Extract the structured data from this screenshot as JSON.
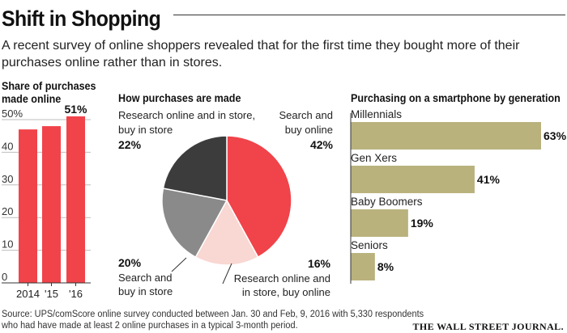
{
  "header": {
    "title": "Shift in Shopping",
    "subtitle": "A recent survey of online shoppers revealed that for the first time they bought more of their purchases online rather than in stores."
  },
  "colors": {
    "red": "#f1434a",
    "dark_gray": "#3c3c3c",
    "mid_gray": "#8a8a8a",
    "pink": "#f9d7d2",
    "khaki": "#b9b27d"
  },
  "chart_data": [
    {
      "type": "bar",
      "title": "Share of purchases made online",
      "categories": [
        "2014",
        "'15",
        "'16"
      ],
      "values": [
        47,
        48,
        51
      ],
      "ylim": [
        0,
        50
      ],
      "yticks": [
        "0",
        "10",
        "20",
        "30",
        "40",
        "50%"
      ],
      "data_labels": [
        "",
        "",
        "51%"
      ]
    },
    {
      "type": "pie",
      "title": "How purchases are made",
      "slices": [
        {
          "label": "Search and buy online",
          "value": 42,
          "value_label": "42%",
          "color": "#f1434a"
        },
        {
          "label": "Research online and in store, buy online",
          "value": 16,
          "value_label": "16%",
          "color": "#f9d7d2"
        },
        {
          "label": "Search and buy in store",
          "value": 20,
          "value_label": "20%",
          "color": "#8a8a8a"
        },
        {
          "label": "Research online and in store, buy in store",
          "value": 22,
          "value_label": "22%",
          "color": "#3c3c3c"
        }
      ]
    },
    {
      "type": "bar",
      "orientation": "horizontal",
      "title": "Purchasing on a smartphone by generation",
      "categories": [
        "Millennials",
        "Gen Xers",
        "Baby Boomers",
        "Seniors"
      ],
      "values": [
        63,
        41,
        19,
        8
      ],
      "value_labels": [
        "63%",
        "41%",
        "19%",
        "8%"
      ]
    }
  ],
  "footer": {
    "source": "Source: UPS/comScore online survey conducted between Jan. 30 and Feb, 9, 2016 with 5,330 respondents who had have made at least 2 online purchases in a typical 3-month period.",
    "brand": "THE WALL STREET JOURNAL."
  }
}
